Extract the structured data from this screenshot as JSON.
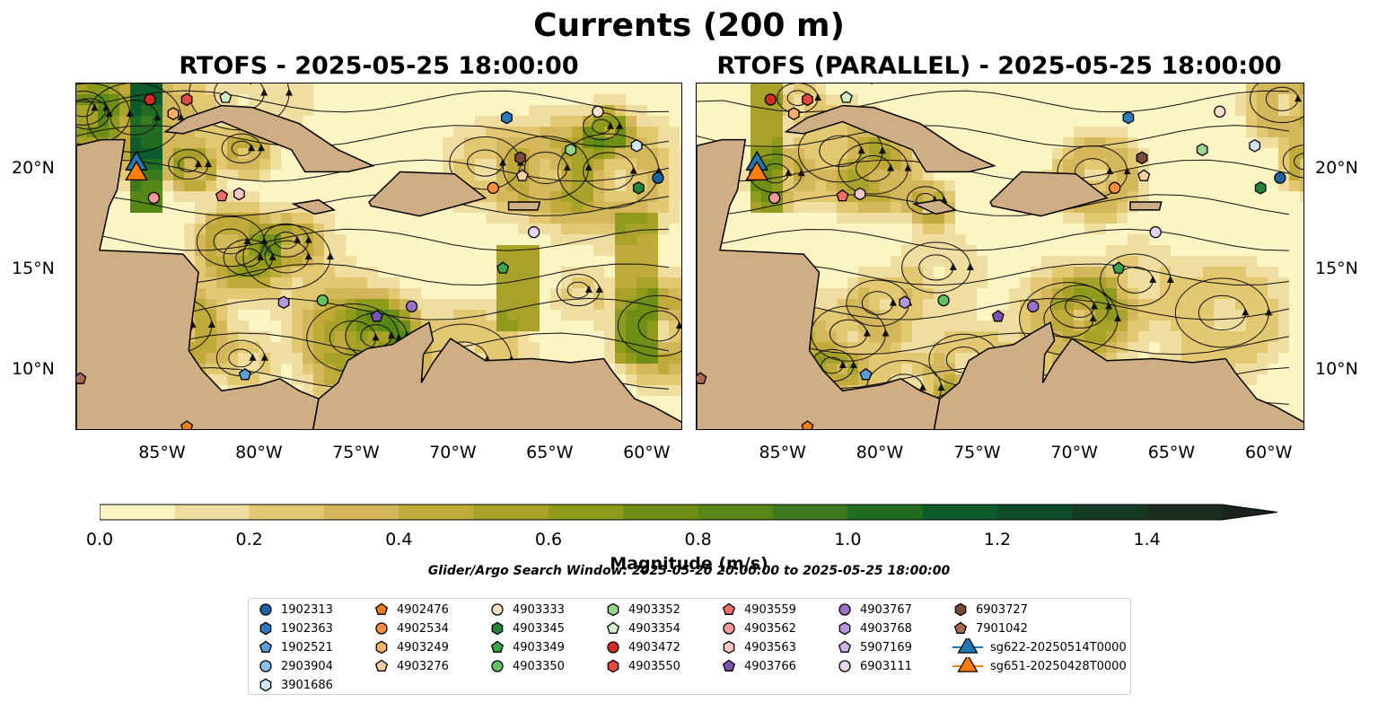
{
  "suptitle": "Currents (200 m)",
  "panels": [
    {
      "title": "RTOFS - 2025-05-25 18:00:00"
    },
    {
      "title": "RTOFS (PARALLEL) - 2025-05-25 18:00:00"
    }
  ],
  "map": {
    "lon_range": [
      -89.5,
      -58.2
    ],
    "lat_range": [
      7.0,
      24.3
    ],
    "lon_ticks": [
      "85°W",
      "80°W",
      "75°W",
      "70°W",
      "65°W",
      "60°W"
    ],
    "lat_ticks": [
      "20°N",
      "15°N",
      "10°N"
    ],
    "colors": {
      "ocean": "#93b5e1",
      "land": "#cfae86",
      "coast": "#000000"
    }
  },
  "colorbar": {
    "label": "Magnitude (m/s)",
    "min": 0.0,
    "max": 1.5,
    "extend": "max",
    "tick_labels": [
      "0.0",
      "0.2",
      "0.4",
      "0.6",
      "0.8",
      "1.0",
      "1.2",
      "1.4"
    ],
    "colors": [
      "#fbf5c3",
      "#efdea0",
      "#e2c870",
      "#d3b75a",
      "#bfaa3a",
      "#a8a22a",
      "#8e9a1c",
      "#6f8e15",
      "#568717",
      "#3d7a1f",
      "#226b23",
      "#0d5a2a",
      "#0e4c28",
      "#163b24",
      "#1c2e1f",
      "#1b241a"
    ]
  },
  "search_window": "Glider/Argo Search Window: 2025-05-20 20:00:00 to 2025-05-25 18:00:00",
  "legend": [
    {
      "label": "1902313",
      "marker": "circle",
      "color": "#1f62a3"
    },
    {
      "label": "1902363",
      "marker": "hexagon",
      "color": "#2d7abf"
    },
    {
      "label": "1902521",
      "marker": "pentagon",
      "color": "#5a9fd6"
    },
    {
      "label": "2903904",
      "marker": "circle",
      "color": "#8fc2e8"
    },
    {
      "label": "3901686",
      "marker": "hexagon",
      "color": "#cfe6f7"
    },
    {
      "label": "4902476",
      "marker": "pentagon",
      "color": "#f07c1c"
    },
    {
      "label": "4902534",
      "marker": "circle",
      "color": "#fb8e3a"
    },
    {
      "label": "4903249",
      "marker": "hexagon",
      "color": "#fcae6b"
    },
    {
      "label": "4903276",
      "marker": "pentagon",
      "color": "#fdd0a2"
    },
    {
      "label": "4903333",
      "marker": "circle",
      "color": "#fde0cc"
    },
    {
      "label": "4903345",
      "marker": "hexagon",
      "color": "#23843a"
    },
    {
      "label": "4903349",
      "marker": "pentagon",
      "color": "#3fa34d"
    },
    {
      "label": "4903350",
      "marker": "circle",
      "color": "#64c15f"
    },
    {
      "label": "4903352",
      "marker": "hexagon",
      "color": "#9ad58f"
    },
    {
      "label": "4903354",
      "marker": "pentagon",
      "color": "#d2efc6"
    },
    {
      "label": "4903472",
      "marker": "circle",
      "color": "#d22b24"
    },
    {
      "label": "4903550",
      "marker": "hexagon",
      "color": "#e04a41"
    },
    {
      "label": "4903559",
      "marker": "pentagon",
      "color": "#ee6f6a"
    },
    {
      "label": "4903562",
      "marker": "circle",
      "color": "#f4999a"
    },
    {
      "label": "4903563",
      "marker": "hexagon",
      "color": "#f8c4c4"
    },
    {
      "label": "4903766",
      "marker": "pentagon",
      "color": "#7b55b3"
    },
    {
      "label": "4903767",
      "marker": "circle",
      "color": "#9b72c8"
    },
    {
      "label": "4903768",
      "marker": "hexagon",
      "color": "#b497da"
    },
    {
      "label": "5907169",
      "marker": "pentagon",
      "color": "#cdb4ea"
    },
    {
      "label": "6903111",
      "marker": "circle",
      "color": "#e6d6f6"
    },
    {
      "label": "6903727",
      "marker": "hexagon",
      "color": "#7a4a3a"
    },
    {
      "label": "7901042",
      "marker": "pentagon",
      "color": "#a86a55"
    },
    {
      "label": "sg622-20250514T0000",
      "marker": "triangle",
      "color": "#1f77b4",
      "line": true
    },
    {
      "label": "sg651-20250428T0000",
      "marker": "triangle",
      "color": "#ff7f0e",
      "line": true
    }
  ],
  "floats": [
    {
      "id": "1902313",
      "lon": -59.5,
      "lat": 19.6,
      "lon2": -59.5,
      "lat2": 19.6
    },
    {
      "id": "1902363",
      "lon": -67.3,
      "lat": 22.6,
      "lon2": -67.3,
      "lat2": 22.6
    },
    {
      "id": "1902521",
      "lon": -80.8,
      "lat": 9.8,
      "lon2": -80.8,
      "lat2": 9.8
    },
    {
      "id": "4902476",
      "lon": -83.8,
      "lat": 7.2,
      "lon2": -83.8,
      "lat2": 7.2
    },
    {
      "id": "4902534",
      "lon": -68.0,
      "lat": 19.1,
      "lon2": -68.0,
      "lat2": 19.1
    },
    {
      "id": "4903249",
      "lon": -84.5,
      "lat": 22.8,
      "lon2": -84.5,
      "lat2": 22.8
    },
    {
      "id": "4903276",
      "lon": -66.5,
      "lat": 19.7,
      "lon2": -66.5,
      "lat2": 19.7
    },
    {
      "id": "4903333",
      "lon": -62.6,
      "lat": 22.9,
      "lon2": -62.6,
      "lat2": 22.9
    },
    {
      "id": "4903345",
      "lon": -60.5,
      "lat": 19.1,
      "lon2": -60.5,
      "lat2": 19.1
    },
    {
      "id": "4903349",
      "lon": -67.5,
      "lat": 15.1,
      "lon2": -67.8,
      "lat2": 15.1
    },
    {
      "id": "4903350",
      "lon": -76.8,
      "lat": 13.5,
      "lon2": -76.8,
      "lat2": 13.5
    },
    {
      "id": "4903352",
      "lon": -64.0,
      "lat": 21.0,
      "lon2": -63.5,
      "lat2": 21.0
    },
    {
      "id": "4903354",
      "lon": -81.8,
      "lat": 23.6,
      "lon2": -81.8,
      "lat2": 23.6
    },
    {
      "id": "3901686",
      "lon": -60.6,
      "lat": 21.2,
      "lon2": -60.8,
      "lat2": 21.2
    },
    {
      "id": "4903472",
      "lon": -85.7,
      "lat": 23.5,
      "lon2": -85.7,
      "lat2": 23.5
    },
    {
      "id": "4903550",
      "lon": -83.8,
      "lat": 23.5,
      "lon2": -83.8,
      "lat2": 23.5
    },
    {
      "id": "4903559",
      "lon": -82.0,
      "lat": 18.7,
      "lon2": -82.0,
      "lat2": 18.7
    },
    {
      "id": "4903562",
      "lon": -85.5,
      "lat": 18.6,
      "lon2": -85.5,
      "lat2": 18.6
    },
    {
      "id": "4903563",
      "lon": -81.1,
      "lat": 18.8,
      "lon2": -81.1,
      "lat2": 18.8
    },
    {
      "id": "4903766",
      "lon": -74.0,
      "lat": 12.7,
      "lon2": -74.0,
      "lat2": 12.7
    },
    {
      "id": "4903767",
      "lon": -72.2,
      "lat": 13.2,
      "lon2": -72.2,
      "lat2": 13.2
    },
    {
      "id": "4903768",
      "lon": -78.8,
      "lat": 13.4,
      "lon2": -78.8,
      "lat2": 13.4
    },
    {
      "id": "6903111",
      "lon": -65.9,
      "lat": 16.9,
      "lon2": -65.9,
      "lat2": 16.9
    },
    {
      "id": "6903727",
      "lon": -66.6,
      "lat": 20.6,
      "lon2": -66.6,
      "lat2": 20.6
    },
    {
      "id": "7901042",
      "lon": -89.3,
      "lat": 9.6,
      "lon2": -89.3,
      "lat2": 9.6
    }
  ],
  "gliders": [
    {
      "id": "sg622-20250514T0000",
      "lon": -86.4,
      "lat": 20.3,
      "color": "#1f77b4"
    },
    {
      "id": "sg651-20250428T0000",
      "lon": -86.4,
      "lat": 19.8,
      "color": "#ff7f0e"
    }
  ]
}
